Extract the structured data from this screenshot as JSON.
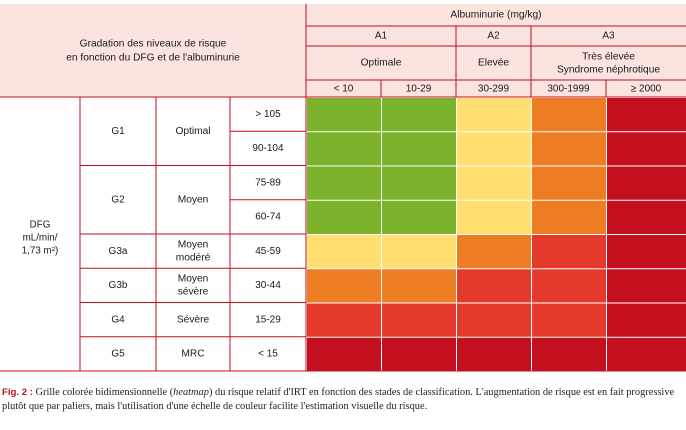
{
  "title": {
    "line1": "Gradation des niveaux de risque",
    "line2": "en fonction du DFG et de l'albuminurie"
  },
  "albuminuria": {
    "title": "Albuminurie (mg/kg)",
    "categories": [
      {
        "code": "A1",
        "label_lines": [
          "Optimale"
        ],
        "span": 2
      },
      {
        "code": "A2",
        "label_lines": [
          "Elevée"
        ],
        "span": 1
      },
      {
        "code": "A3",
        "label_lines": [
          "Très élevée",
          "Syndrome néphrotique"
        ],
        "span": 2
      }
    ],
    "ranges": [
      "< 10",
      "10-29",
      "30-299",
      "300-1999",
      "≥ 2000"
    ]
  },
  "dfg": {
    "label_lines": [
      "DFG",
      "mL/min/",
      "1,73 m²)"
    ],
    "stages": [
      {
        "code": "G1",
        "label_lines": [
          "Optimal"
        ],
        "ranges": [
          "> 105",
          "90-104"
        ]
      },
      {
        "code": "G2",
        "label_lines": [
          "Moyen"
        ],
        "ranges": [
          "75-89",
          "60-74"
        ]
      },
      {
        "code": "G3a",
        "label_lines": [
          "Moyen",
          "modéré"
        ],
        "ranges": [
          "45-59"
        ]
      },
      {
        "code": "G3b",
        "label_lines": [
          "Moyen",
          "sévère"
        ],
        "ranges": [
          "30-44"
        ]
      },
      {
        "code": "G4",
        "label_lines": [
          "Sévère"
        ],
        "ranges": [
          "15-29"
        ]
      },
      {
        "code": "G5",
        "label_lines": [
          "MRC"
        ],
        "ranges": [
          "< 15"
        ]
      }
    ]
  },
  "risk_colors": {
    "green": "#7cb32c",
    "yellow": "#fedf6f",
    "orange": "#ec7d22",
    "red": "#e33a2c",
    "darkred": "#c40f1f"
  },
  "heatmap": [
    [
      "green",
      "green",
      "yellow",
      "orange",
      "darkred"
    ],
    [
      "green",
      "green",
      "yellow",
      "orange",
      "darkred"
    ],
    [
      "green",
      "green",
      "yellow",
      "orange",
      "darkred"
    ],
    [
      "green",
      "green",
      "yellow",
      "orange",
      "darkred"
    ],
    [
      "yellow",
      "yellow",
      "orange",
      "red",
      "darkred"
    ],
    [
      "orange",
      "orange",
      "red",
      "red",
      "darkred"
    ],
    [
      "red",
      "red",
      "red",
      "red",
      "darkred"
    ],
    [
      "darkred",
      "darkred",
      "darkred",
      "darkred",
      "darkred"
    ]
  ],
  "theme": {
    "header_pink": "#fbe3df",
    "line_red": "#c40f1f",
    "caption_red": "#b5121b"
  },
  "caption": {
    "label": "Fig. 2 :",
    "text_before": " Grille colorée bidimensionnelle (",
    "emphasis": "heatmap",
    "text_after": ") du risque relatif d'IRT en fonction des stades de classification. L'augmentation de risque est en fait progressive plutôt que par paliers, mais l'utilisation d'une échelle de couleur facilite l'estimation visuelle du risque."
  }
}
